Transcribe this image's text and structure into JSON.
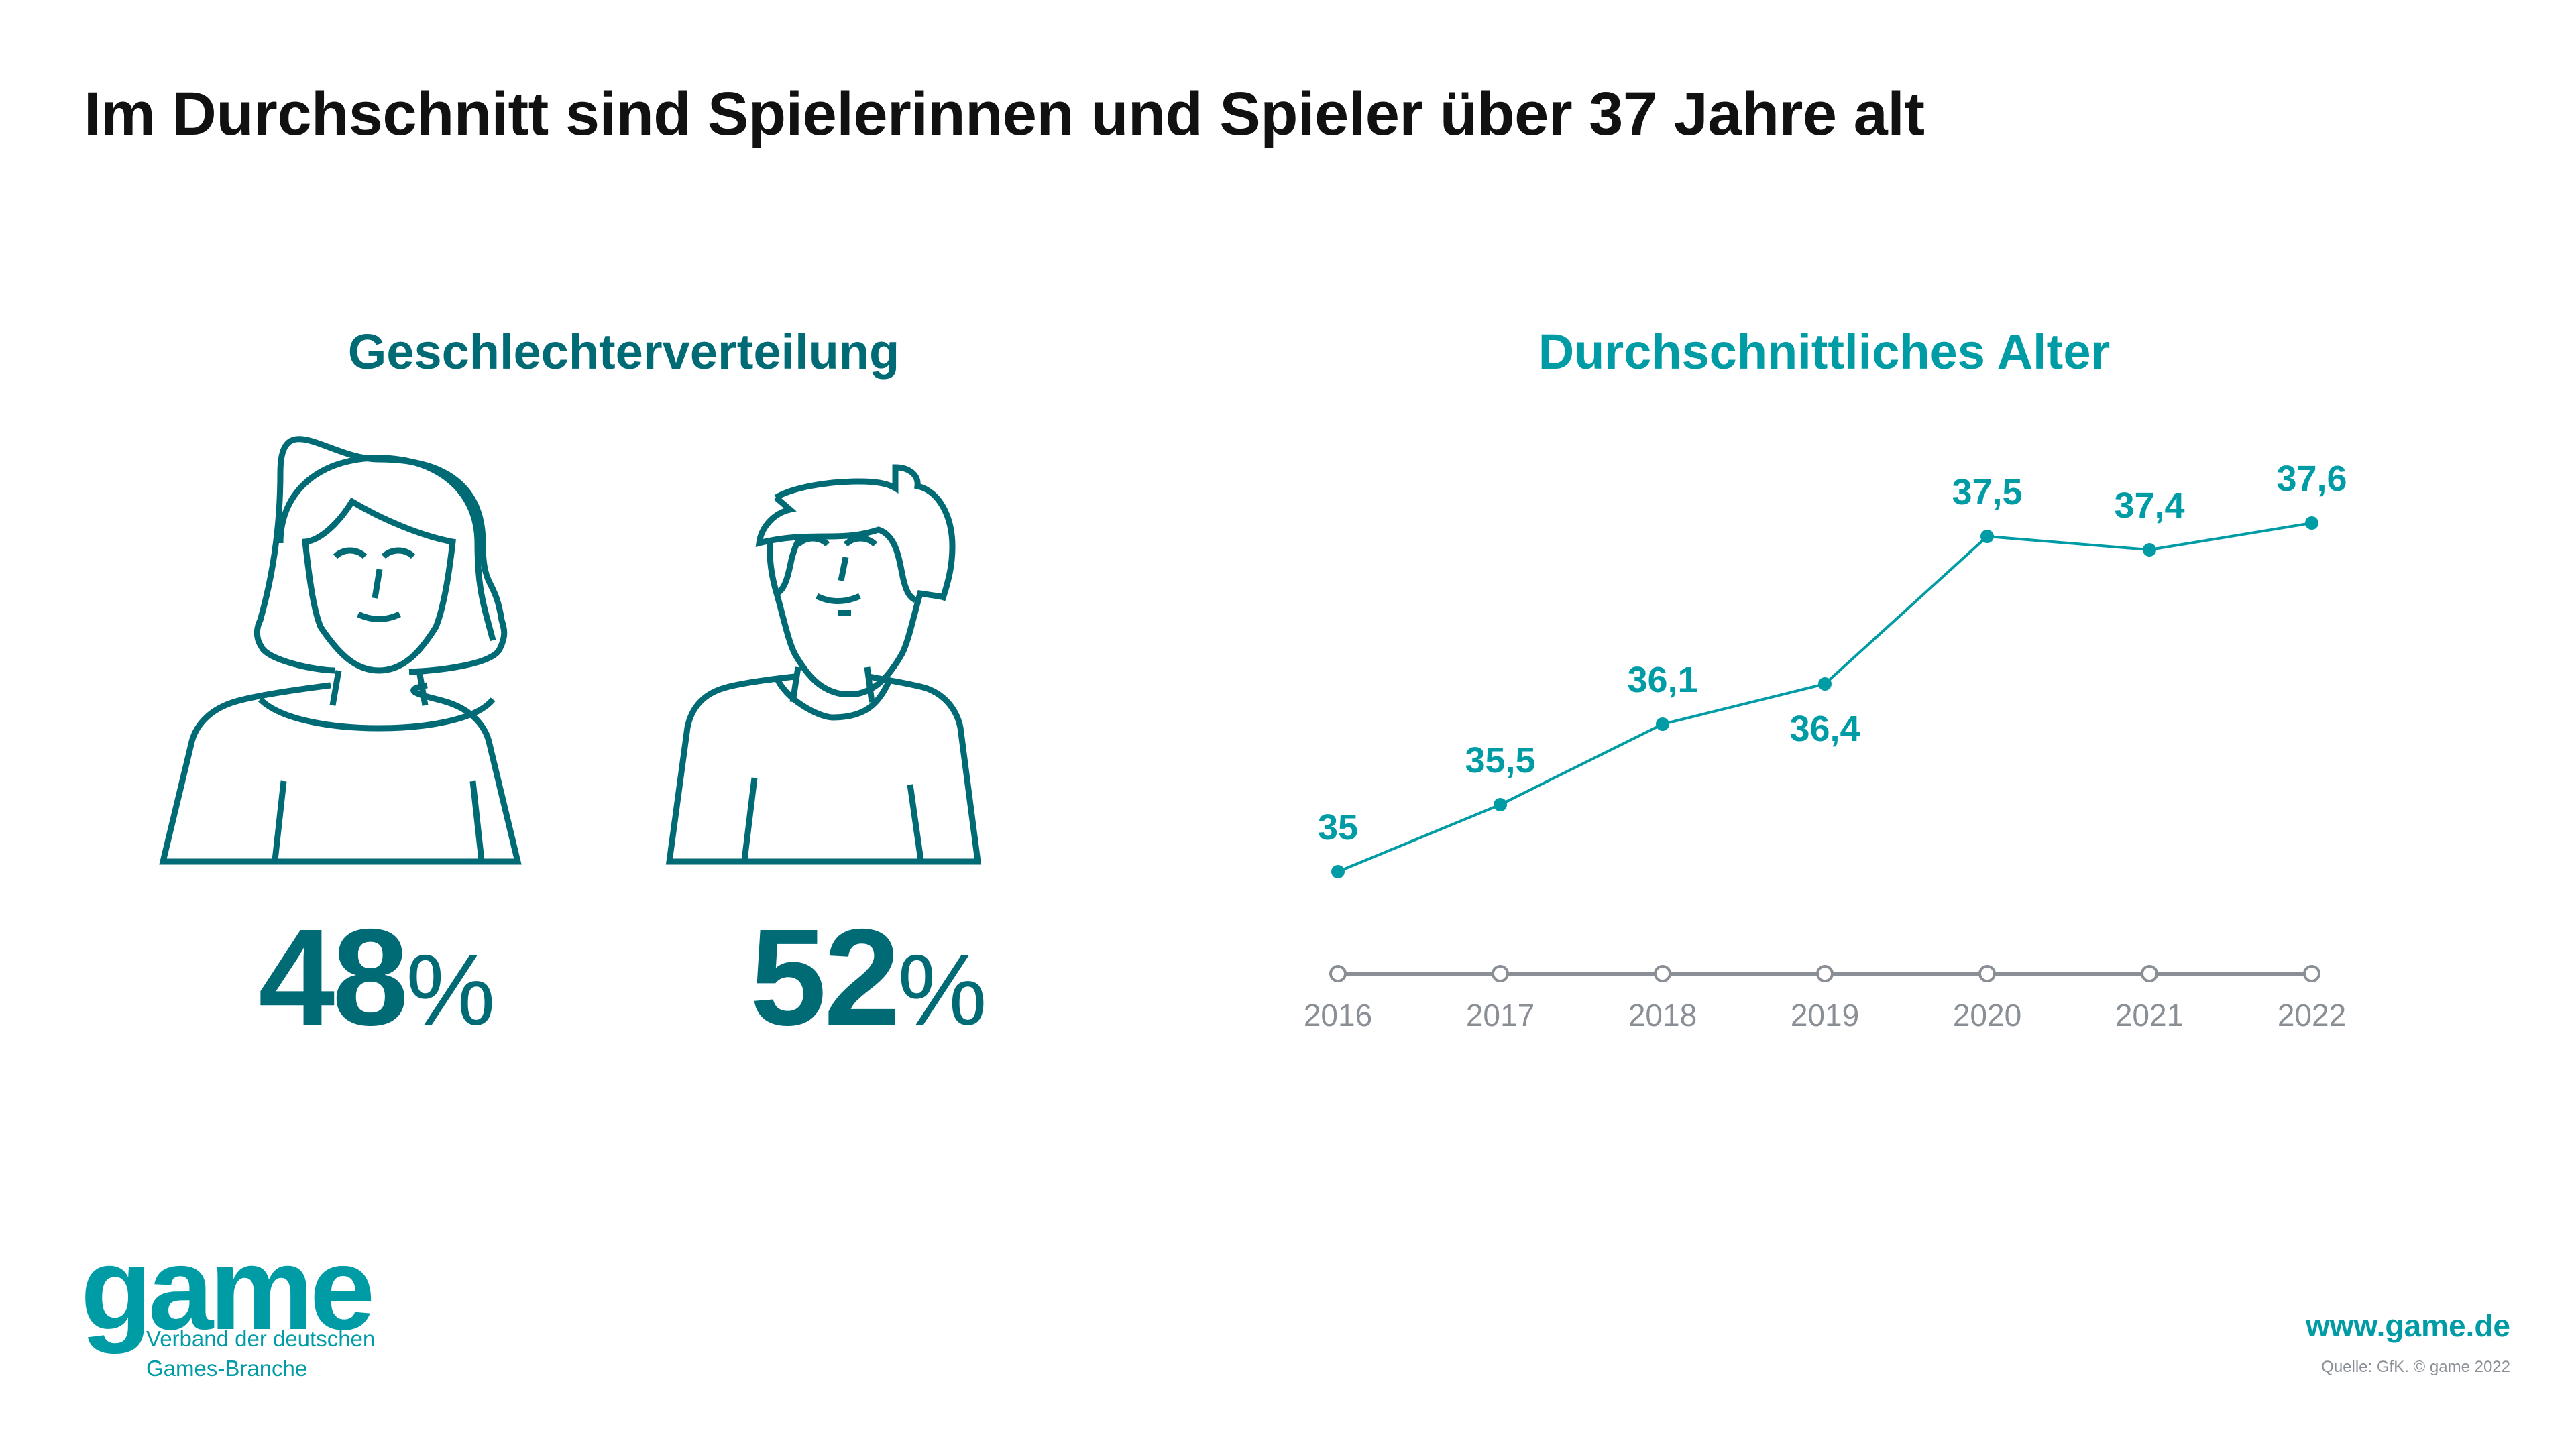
{
  "title": "Im Durchschnitt sind Spielerinnen und Spieler über 37 Jahre alt",
  "gender": {
    "heading": "Geschlechterverteilung",
    "female": {
      "label": "female",
      "value": "48",
      "unit": "%"
    },
    "male": {
      "label": "male",
      "value": "52",
      "unit": "%"
    }
  },
  "colors": {
    "dark_teal": "#006a75",
    "teal": "#009ca6",
    "axis_gray": "#8a8f96",
    "title": "#111111"
  },
  "chart_data": {
    "type": "line",
    "title": "Durchschnittliches Alter",
    "xlabel": "",
    "ylabel": "",
    "x": [
      "2016",
      "2017",
      "2018",
      "2019",
      "2020",
      "2021",
      "2022"
    ],
    "values": [
      35,
      35.5,
      36.1,
      36.4,
      37.5,
      37.4,
      37.6
    ],
    "data_labels": [
      "35",
      "35,5",
      "36,1",
      "36,4",
      "37,5",
      "37,4",
      "37,6"
    ],
    "label_positions": [
      "above",
      "above",
      "above",
      "below",
      "above",
      "above",
      "above"
    ],
    "grid": false,
    "legend": "none"
  },
  "logo": {
    "word": "game",
    "subtitle_line1": "Verband der deutschen",
    "subtitle_line2": "Games-Branche"
  },
  "footer": {
    "website": "www.game.de",
    "source": "Quelle: GfK. © game 2022"
  }
}
